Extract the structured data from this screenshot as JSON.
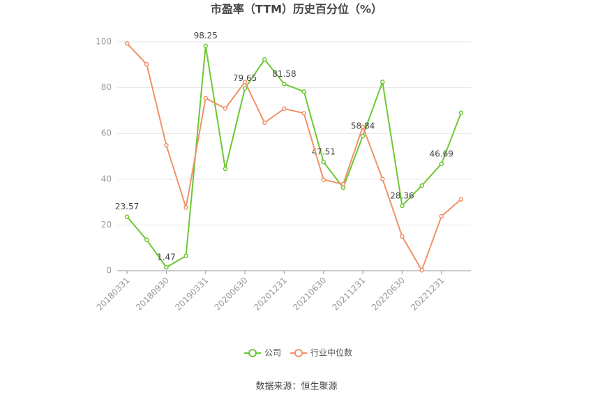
{
  "chart_data": {
    "type": "line",
    "title": "市盈率（TTM）历史百分位（%）",
    "source": "数据来源：恒生聚源",
    "categories": [
      "20180331",
      null,
      "20180930",
      null,
      "20190331",
      null,
      "20200630",
      null,
      "20201231",
      null,
      "20210630",
      null,
      "20211231",
      null,
      "20220630",
      null,
      "20221231",
      null
    ],
    "series": [
      {
        "name": "公司",
        "color": "#6cc832",
        "values": [
          23.57,
          13.5,
          1.47,
          6.5,
          98.25,
          44.5,
          79.65,
          92.3,
          81.58,
          78.3,
          47.51,
          36.3,
          58.84,
          82.5,
          28.36,
          37.2,
          46.69,
          69.0
        ]
      },
      {
        "name": "行业中位数",
        "color": "#f0916a",
        "values": [
          99.3,
          90.2,
          54.8,
          27.6,
          75.4,
          70.9,
          82.5,
          64.7,
          70.8,
          68.8,
          39.8,
          37.8,
          62.9,
          40.1,
          15.0,
          0.2,
          23.8,
          31.2
        ]
      }
    ],
    "ylim": [
      0,
      100
    ],
    "yticks": [
      0,
      20,
      40,
      60,
      80,
      100
    ],
    "grid": true
  }
}
